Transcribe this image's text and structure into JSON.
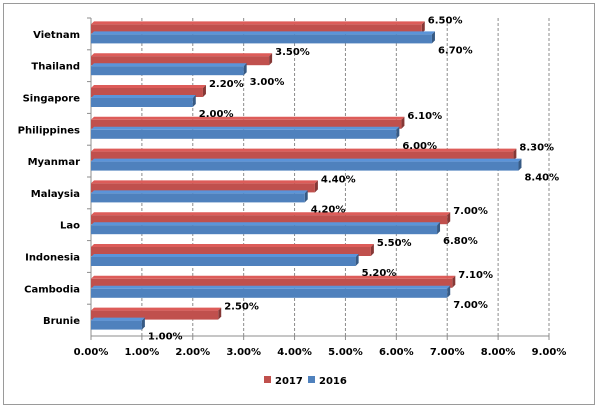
{
  "chart_data": {
    "type": "bar",
    "orientation": "horizontal",
    "categories": [
      "Vietnam",
      "Thailand",
      "Singapore",
      "Philippines",
      "Myanmar",
      "Malaysia",
      "Lao",
      "Indonesia",
      "Cambodia",
      "Brunie"
    ],
    "series": [
      {
        "name": "2017",
        "color": "#c0504d",
        "values": [
          6.5,
          3.5,
          2.2,
          6.1,
          8.3,
          4.4,
          7.0,
          5.5,
          7.1,
          2.5
        ],
        "labels": [
          "6.50%",
          "3.50%",
          "2.20%",
          "6.10%",
          "8.30%",
          "4.40%",
          "7.00%",
          "5.50%",
          "7.10%",
          "2.50%"
        ]
      },
      {
        "name": "2016",
        "color": "#4f81bd",
        "values": [
          6.7,
          3.0,
          2.0,
          6.0,
          8.4,
          4.2,
          6.8,
          5.2,
          7.0,
          1.0
        ],
        "labels": [
          "6.70%",
          "3.00%",
          "2.00%",
          "6.00%",
          "8.40%",
          "4.20%",
          "6.80%",
          "5.20%",
          "7.00%",
          "1.00%"
        ]
      }
    ],
    "xlim": [
      0,
      9
    ],
    "xticks": [
      "0.00%",
      "1.00%",
      "2.00%",
      "3.00%",
      "4.00%",
      "5.00%",
      "6.00%",
      "7.00%",
      "8.00%",
      "9.00%"
    ],
    "title": "",
    "xlabel": "",
    "ylabel": "",
    "grid": "vertical dashed",
    "legend": "bottom"
  }
}
